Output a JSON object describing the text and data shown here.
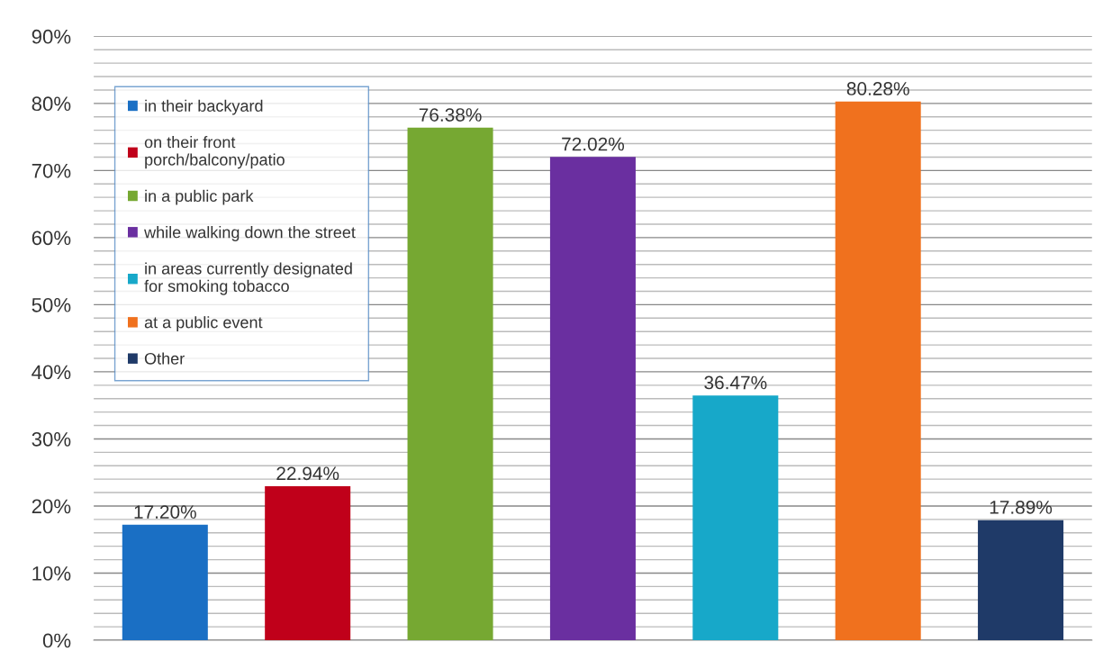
{
  "chart_data": {
    "type": "bar",
    "categories": [
      null,
      null,
      null,
      null,
      null,
      null,
      null
    ],
    "series": [
      {
        "name": "in their backyard",
        "color": "#1a6fc4",
        "values": [
          17.2,
          null,
          null,
          null,
          null,
          null,
          null
        ],
        "value_labels": [
          "17.20%",
          null,
          null,
          null,
          null,
          null,
          null
        ]
      },
      {
        "name": "on their front\nporch/balcony/patio",
        "color": "#c0001a",
        "values": [
          null,
          22.94,
          null,
          null,
          null,
          null,
          null
        ],
        "value_labels": [
          null,
          "22.94%",
          null,
          null,
          null,
          null,
          null
        ]
      },
      {
        "name": "in a public park",
        "color": "#76a832",
        "values": [
          null,
          null,
          76.38,
          null,
          null,
          null,
          null
        ],
        "value_labels": [
          null,
          null,
          "76.38%",
          null,
          null,
          null,
          null
        ]
      },
      {
        "name": "while walking down the street",
        "color": "#6a2fa0",
        "values": [
          null,
          null,
          null,
          72.02,
          null,
          null,
          null
        ],
        "value_labels": [
          null,
          null,
          null,
          "72.02%",
          null,
          null,
          null
        ]
      },
      {
        "name": "in areas currently designated\nfor smoking tobacco",
        "color": "#17a8c9",
        "values": [
          null,
          null,
          null,
          null,
          36.47,
          null,
          null
        ],
        "value_labels": [
          null,
          null,
          null,
          null,
          "36.47%",
          null,
          null
        ]
      },
      {
        "name": "at a public event",
        "color": "#f0711e",
        "values": [
          null,
          null,
          null,
          null,
          null,
          80.28,
          null
        ],
        "value_labels": [
          null,
          null,
          null,
          null,
          null,
          "80.28%",
          null
        ]
      },
      {
        "name": "Other",
        "color": "#1f3a68",
        "values": [
          null,
          null,
          null,
          null,
          null,
          null,
          17.89
        ],
        "value_labels": [
          null,
          null,
          null,
          null,
          null,
          null,
          "17.89%"
        ]
      }
    ],
    "ylim": [
      0,
      90
    ],
    "yticks": [
      {
        "value": 0,
        "label": "0%"
      },
      {
        "value": 2,
        "label": null
      },
      {
        "value": 4,
        "label": null
      },
      {
        "value": 6,
        "label": null
      },
      {
        "value": 8,
        "label": null
      },
      {
        "value": 10,
        "label": "10%"
      },
      {
        "value": 12,
        "label": null
      },
      {
        "value": 14,
        "label": null
      },
      {
        "value": 16,
        "label": null
      },
      {
        "value": 18,
        "label": null
      },
      {
        "value": 20,
        "label": "20%"
      },
      {
        "value": 22,
        "label": null
      },
      {
        "value": 24,
        "label": null
      },
      {
        "value": 26,
        "label": null
      },
      {
        "value": 28,
        "label": null
      },
      {
        "value": 30,
        "label": "30%"
      },
      {
        "value": 32,
        "label": null
      },
      {
        "value": 34,
        "label": null
      },
      {
        "value": 36,
        "label": null
      },
      {
        "value": 38,
        "label": null
      },
      {
        "value": 40,
        "label": "40%"
      },
      {
        "value": 42,
        "label": null
      },
      {
        "value": 44,
        "label": null
      },
      {
        "value": 46,
        "label": null
      },
      {
        "value": 48,
        "label": null
      },
      {
        "value": 50,
        "label": "50%"
      },
      {
        "value": 52,
        "label": null
      },
      {
        "value": 54,
        "label": null
      },
      {
        "value": 56,
        "label": null
      },
      {
        "value": 58,
        "label": null
      },
      {
        "value": 60,
        "label": "60%"
      },
      {
        "value": 62,
        "label": null
      },
      {
        "value": 64,
        "label": null
      },
      {
        "value": 66,
        "label": null
      },
      {
        "value": 68,
        "label": null
      },
      {
        "value": 70,
        "label": "70%"
      },
      {
        "value": 72,
        "label": null
      },
      {
        "value": 74,
        "label": null
      },
      {
        "value": 76,
        "label": null
      },
      {
        "value": 78,
        "label": null
      },
      {
        "value": 80,
        "label": "80%"
      },
      {
        "value": 82,
        "label": null
      },
      {
        "value": 84,
        "label": null
      },
      {
        "value": 86,
        "label": null
      },
      {
        "value": 88,
        "label": null
      },
      {
        "value": 90,
        "label": "90%"
      }
    ],
    "grid": "y",
    "legend": "top left"
  }
}
